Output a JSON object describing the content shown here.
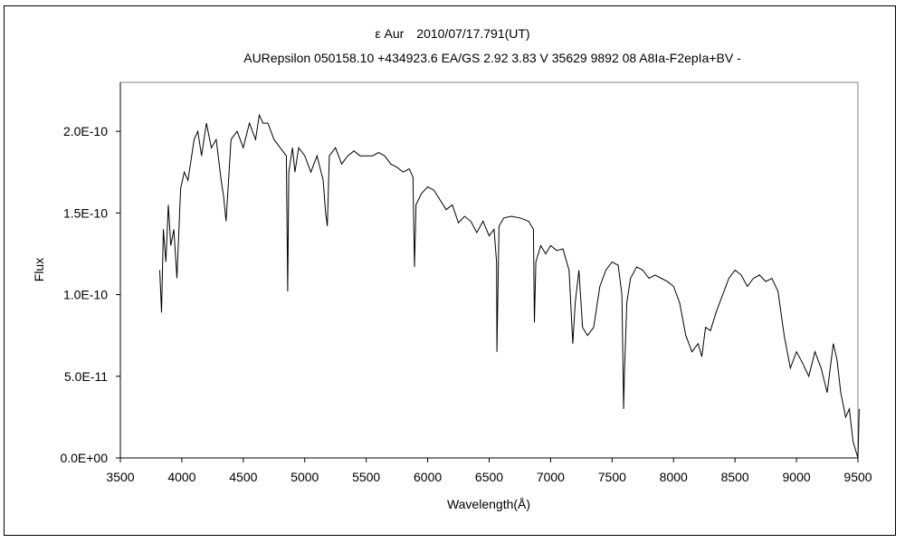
{
  "chart_data": {
    "type": "line",
    "title": "ε Aur　2010/07/17.791(UT)",
    "subtitle": "AURepsilon 050158.10 +434923.6 EA/GS 2.92 3.83 V 35629 9892 08 A8Ia-F2epIa+BV -",
    "xlabel": "Wavelength(Å)",
    "ylabel": "Flux",
    "xlim": [
      3500,
      9500
    ],
    "ylim": [
      0,
      2.3e-10
    ],
    "x_ticks": [
      3500,
      4000,
      4500,
      5000,
      5500,
      6000,
      6500,
      7000,
      7500,
      8000,
      8500,
      9000,
      9500
    ],
    "x_tick_labels": [
      "3500",
      "4000",
      "4500",
      "5000",
      "5500",
      "6000",
      "6500",
      "7000",
      "7500",
      "8000",
      "8500",
      "9000",
      "9500"
    ],
    "y_ticks": [
      0,
      5e-11,
      1e-10,
      1.5e-10,
      2e-10
    ],
    "y_tick_labels": [
      "0.0E+00",
      "5.0E-11",
      "1.0E-10",
      "1.5E-10",
      "2.0E-10"
    ],
    "grid": false,
    "legend": false,
    "series": [
      {
        "color": "#000000",
        "x": [
          3820,
          3835,
          3850,
          3870,
          3890,
          3910,
          3935,
          3960,
          3990,
          4020,
          4050,
          4080,
          4100,
          4130,
          4160,
          4200,
          4240,
          4280,
          4320,
          4340,
          4360,
          4400,
          4450,
          4500,
          4550,
          4600,
          4630,
          4660,
          4700,
          4750,
          4800,
          4850,
          4861,
          4870,
          4900,
          4920,
          4950,
          5000,
          5050,
          5100,
          5150,
          5170,
          5184,
          5200,
          5250,
          5300,
          5350,
          5400,
          5450,
          5500,
          5550,
          5600,
          5650,
          5700,
          5750,
          5800,
          5850,
          5880,
          5893,
          5905,
          5950,
          6000,
          6050,
          6100,
          6150,
          6200,
          6250,
          6300,
          6350,
          6400,
          6450,
          6500,
          6540,
          6560,
          6563,
          6580,
          6620,
          6680,
          6750,
          6820,
          6860,
          6868,
          6880,
          6920,
          6960,
          7000,
          7050,
          7100,
          7150,
          7180,
          7200,
          7230,
          7260,
          7300,
          7350,
          7400,
          7450,
          7500,
          7550,
          7580,
          7594,
          7600,
          7620,
          7650,
          7700,
          7750,
          7800,
          7850,
          7900,
          7950,
          8000,
          8050,
          8100,
          8150,
          8200,
          8230,
          8260,
          8300,
          8350,
          8400,
          8450,
          8500,
          8550,
          8600,
          8650,
          8700,
          8750,
          8800,
          8850,
          8900,
          8950,
          9000,
          9050,
          9100,
          9150,
          9200,
          9250,
          9300,
          9330,
          9360,
          9400,
          9430,
          9460,
          9480,
          9500,
          9510
        ],
        "y": [
          1.15e-10,
          8.9e-11,
          1.4e-10,
          1.2e-10,
          1.55e-10,
          1.3e-10,
          1.4e-10,
          1.1e-10,
          1.65e-10,
          1.75e-10,
          1.7e-10,
          1.85e-10,
          1.95e-10,
          2e-10,
          1.85e-10,
          2.05e-10,
          1.9e-10,
          1.95e-10,
          1.7e-10,
          1.6e-10,
          1.45e-10,
          1.95e-10,
          2e-10,
          1.9e-10,
          2.05e-10,
          1.95e-10,
          2.1e-10,
          2.05e-10,
          2.05e-10,
          1.95e-10,
          1.9e-10,
          1.85e-10,
          1.02e-10,
          1.75e-10,
          1.9e-10,
          1.75e-10,
          1.9e-10,
          1.85e-10,
          1.75e-10,
          1.85e-10,
          1.7e-10,
          1.5e-10,
          1.42e-10,
          1.85e-10,
          1.9e-10,
          1.8e-10,
          1.85e-10,
          1.88e-10,
          1.85e-10,
          1.85e-10,
          1.85e-10,
          1.87e-10,
          1.85e-10,
          1.8e-10,
          1.78e-10,
          1.75e-10,
          1.77e-10,
          1.72e-10,
          1.17e-10,
          1.55e-10,
          1.62e-10,
          1.66e-10,
          1.64e-10,
          1.58e-10,
          1.52e-10,
          1.55e-10,
          1.44e-10,
          1.48e-10,
          1.45e-10,
          1.38e-10,
          1.45e-10,
          1.36e-10,
          1.4e-10,
          1.2e-10,
          6.5e-11,
          1.42e-10,
          1.47e-10,
          1.48e-10,
          1.47e-10,
          1.45e-10,
          1.4e-10,
          8.3e-11,
          1.2e-10,
          1.3e-10,
          1.25e-10,
          1.3e-10,
          1.27e-10,
          1.28e-10,
          1.15e-10,
          7e-11,
          9.5e-11,
          1.15e-10,
          8e-11,
          7.5e-11,
          8e-11,
          1.05e-10,
          1.15e-10,
          1.2e-10,
          1.18e-10,
          1e-10,
          3e-11,
          5e-11,
          9.5e-11,
          1.1e-10,
          1.17e-10,
          1.15e-10,
          1.1e-10,
          1.12e-10,
          1.1e-10,
          1.08e-10,
          1.05e-10,
          9.5e-11,
          7.5e-11,
          6.5e-11,
          7e-11,
          6.2e-11,
          8e-11,
          7.8e-11,
          9e-11,
          1e-10,
          1.1e-10,
          1.15e-10,
          1.12e-10,
          1.05e-10,
          1.1e-10,
          1.12e-10,
          1.08e-10,
          1.1e-10,
          1.02e-10,
          7.5e-11,
          5.5e-11,
          6.5e-11,
          5.8e-11,
          5e-11,
          6.5e-11,
          5.5e-11,
          4e-11,
          7e-11,
          6e-11,
          4e-11,
          2.5e-11,
          3e-11,
          1e-11,
          5e-12,
          0,
          3e-11
        ]
      }
    ]
  }
}
